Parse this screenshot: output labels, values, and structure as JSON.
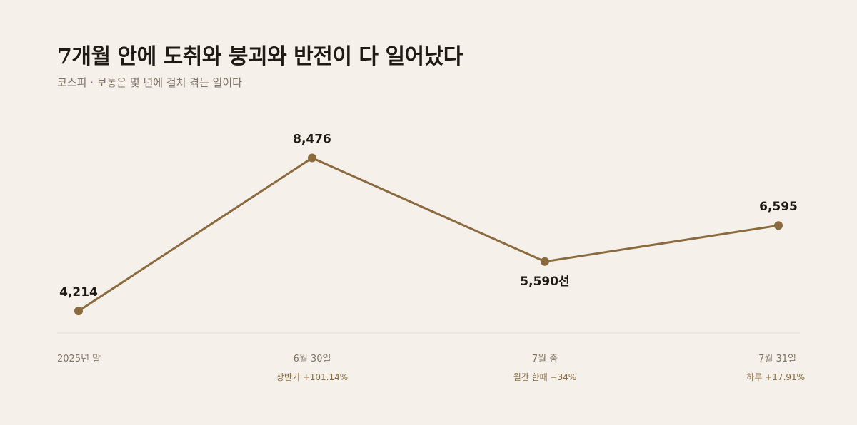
{
  "header": {
    "title": "7개월 안에 도취와 붕괴와 반전이 다 일어났다",
    "subtitle": "코스피 · 보통은 몇 년에 걸쳐 겪는 일이다"
  },
  "chart_data": {
    "type": "line",
    "categories": [
      "2025년 말",
      "6월 30일",
      "7월 중",
      "7월 31일"
    ],
    "values": [
      4214,
      8476,
      5590,
      6595
    ],
    "value_labels": [
      "4,214",
      "8,476",
      "5,590선",
      "6,595"
    ],
    "notes": [
      "",
      "상반기 +101.14%",
      "월간 한때 −34%",
      "하루 +17.91%"
    ],
    "ylim": [
      3600,
      9300
    ],
    "grid": false,
    "line_color": "#8a6a3e",
    "baseline_color": "#e3dcd0"
  }
}
